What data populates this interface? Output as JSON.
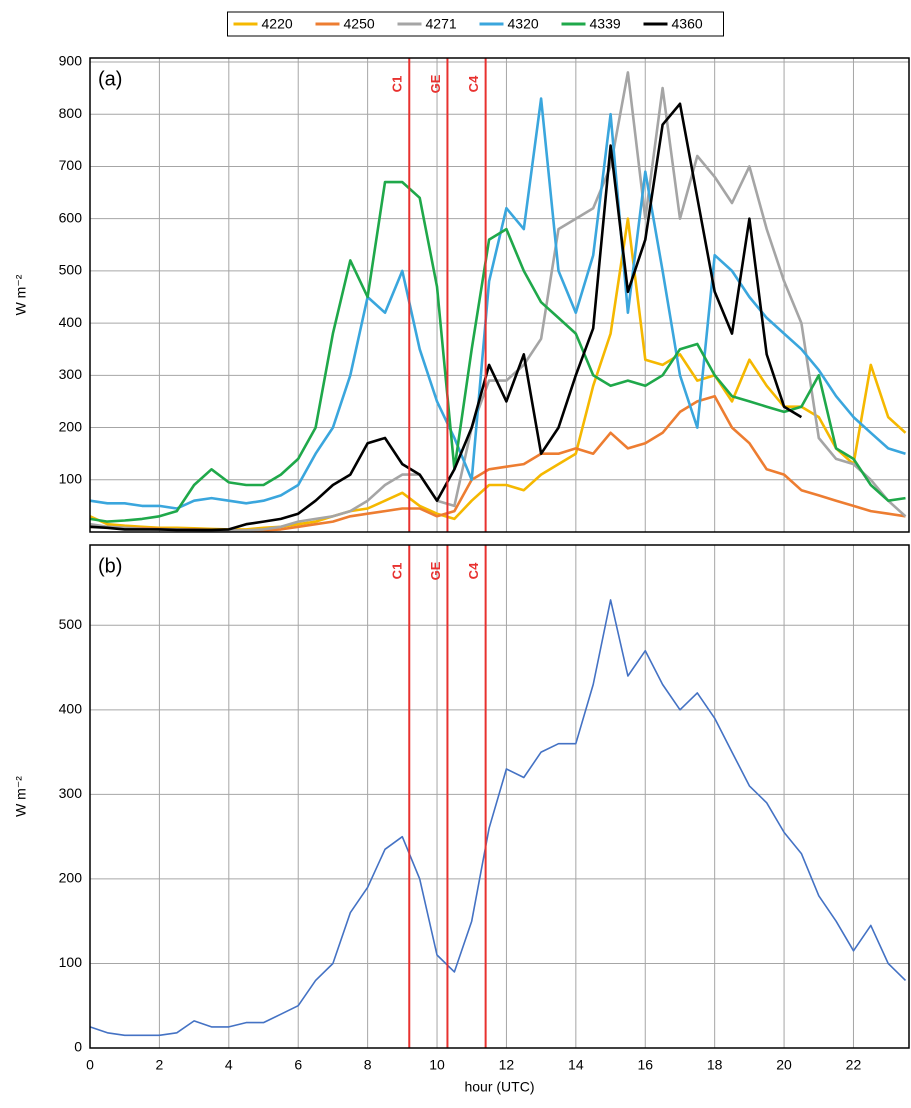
{
  "chart_data": [
    {
      "type": "line",
      "panel_label": "(a)",
      "ylabel": "W m⁻²",
      "legend": "top",
      "grid": true,
      "xlim": [
        0,
        23.6
      ],
      "xticks": [
        0,
        2,
        4,
        6,
        8,
        10,
        12,
        14,
        16,
        18,
        20,
        22
      ],
      "ylim": [
        0,
        900
      ],
      "yticks": [
        100,
        200,
        300,
        400,
        500,
        600,
        700,
        800,
        900
      ],
      "annotation_color": "#e8312f",
      "annotations": [
        {
          "label": "C1",
          "x": 9.2
        },
        {
          "label": "GE",
          "x": 10.3
        },
        {
          "label": "C4",
          "x": 11.4
        }
      ],
      "x": [
        0,
        0.5,
        1,
        1.5,
        2,
        2.5,
        3,
        3.5,
        4,
        4.5,
        5,
        5.5,
        6,
        6.5,
        7,
        7.5,
        8,
        8.5,
        9,
        9.5,
        10,
        10.5,
        11,
        11.5,
        12,
        12.5,
        13,
        13.5,
        14,
        14.5,
        15,
        15.5,
        16,
        16.5,
        17,
        17.5,
        18,
        18.5,
        19,
        19.5,
        20,
        20.5,
        21,
        21.5,
        22,
        22.5,
        23,
        23.5
      ],
      "series": [
        {
          "name": "4220",
          "color": "#f5b800",
          "values": [
            30,
            15,
            12,
            10,
            8,
            8,
            7,
            6,
            5,
            5,
            8,
            10,
            15,
            20,
            30,
            40,
            45,
            60,
            75,
            50,
            35,
            25,
            60,
            90,
            90,
            80,
            110,
            130,
            150,
            280,
            380,
            600,
            330,
            320,
            340,
            290,
            300,
            250,
            330,
            280,
            240,
            240,
            220,
            160,
            130,
            320,
            220,
            190
          ]
        },
        {
          "name": "4250",
          "color": "#ed7d31",
          "values": [
            10,
            10,
            8,
            7,
            6,
            5,
            5,
            4,
            3,
            3,
            3,
            5,
            10,
            15,
            20,
            30,
            35,
            40,
            45,
            45,
            30,
            40,
            100,
            120,
            125,
            130,
            150,
            150,
            160,
            150,
            190,
            160,
            170,
            190,
            230,
            250,
            260,
            200,
            170,
            120,
            110,
            80,
            70,
            60,
            50,
            40,
            35,
            30
          ]
        },
        {
          "name": "4271",
          "color": "#a5a5a5",
          "values": [
            15,
            10,
            8,
            6,
            5,
            5,
            4,
            3,
            3,
            3,
            5,
            10,
            20,
            25,
            30,
            40,
            60,
            90,
            110,
            110,
            60,
            50,
            200,
            290,
            290,
            320,
            370,
            580,
            600,
            620,
            700,
            880,
            600,
            850,
            600,
            720,
            680,
            630,
            700,
            580,
            480,
            400,
            180,
            140,
            130,
            100,
            60,
            30
          ]
        },
        {
          "name": "4320",
          "color": "#3aa6dd",
          "values": [
            60,
            55,
            55,
            50,
            50,
            45,
            60,
            65,
            60,
            55,
            60,
            70,
            90,
            150,
            200,
            300,
            450,
            420,
            500,
            350,
            250,
            180,
            100,
            480,
            620,
            580,
            830,
            500,
            420,
            530,
            800,
            420,
            690,
            500,
            300,
            200,
            530,
            500,
            450,
            410,
            380,
            350,
            310,
            260,
            220,
            190,
            160,
            150
          ]
        },
        {
          "name": "4339",
          "color": "#1fa84a",
          "values": [
            25,
            20,
            22,
            25,
            30,
            40,
            90,
            120,
            95,
            90,
            90,
            110,
            140,
            200,
            380,
            520,
            450,
            670,
            670,
            640,
            470,
            120,
            350,
            560,
            580,
            500,
            440,
            410,
            380,
            300,
            280,
            290,
            280,
            300,
            350,
            360,
            300,
            260,
            250,
            240,
            230,
            240,
            300,
            160,
            140,
            90,
            60,
            65
          ]
        },
        {
          "name": "4360",
          "color": "#000000",
          "values": [
            10,
            8,
            5,
            5,
            5,
            4,
            4,
            4,
            5,
            15,
            20,
            25,
            35,
            60,
            90,
            110,
            170,
            180,
            130,
            110,
            60,
            120,
            200,
            320,
            250,
            340,
            150,
            200,
            300,
            390,
            740,
            460,
            560,
            780,
            820,
            640,
            460,
            380,
            600,
            340,
            240,
            220,
            null,
            null,
            null,
            null,
            null,
            null
          ]
        }
      ]
    },
    {
      "type": "line",
      "panel_label": "(b)",
      "ylabel": "W m⁻²",
      "xlabel": "hour (UTC)",
      "grid": true,
      "xlim": [
        0,
        23.6
      ],
      "xticks": [
        0,
        2,
        4,
        6,
        8,
        10,
        12,
        14,
        16,
        18,
        20,
        22
      ],
      "ylim": [
        0,
        595
      ],
      "yticks": [
        0,
        100,
        200,
        300,
        400,
        500
      ],
      "annotation_color": "#e8312f",
      "annotations": [
        {
          "label": "C1",
          "x": 9.2
        },
        {
          "label": "GE",
          "x": 10.3
        },
        {
          "label": "C4",
          "x": 11.4
        }
      ],
      "x": [
        0,
        0.5,
        1,
        1.5,
        2,
        2.5,
        3,
        3.5,
        4,
        4.5,
        5,
        5.5,
        6,
        6.5,
        7,
        7.5,
        8,
        8.5,
        9,
        9.5,
        10,
        10.5,
        11,
        11.5,
        12,
        12.5,
        13,
        13.5,
        14,
        14.5,
        15,
        15.5,
        16,
        16.5,
        17,
        17.5,
        18,
        18.5,
        19,
        19.5,
        20,
        20.5,
        21,
        21.5,
        22,
        22.5,
        23,
        23.5
      ],
      "series": [
        {
          "color": "#4472c4",
          "values": [
            25,
            18,
            15,
            15,
            15,
            18,
            32,
            25,
            25,
            30,
            30,
            40,
            50,
            80,
            100,
            160,
            190,
            235,
            250,
            200,
            110,
            90,
            150,
            260,
            330,
            320,
            350,
            360,
            360,
            430,
            530,
            440,
            470,
            430,
            400,
            420,
            390,
            350,
            310,
            290,
            255,
            230,
            180,
            150,
            115,
            145,
            100,
            80
          ]
        }
      ]
    }
  ]
}
